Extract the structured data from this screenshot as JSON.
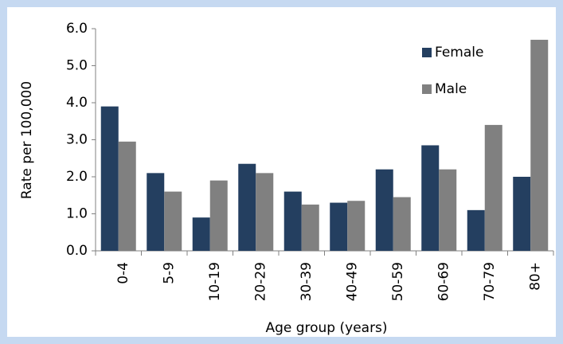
{
  "chart_data": {
    "type": "bar",
    "xlabel": "Age group (years)",
    "ylabel": "Rate per 100,000",
    "categories": [
      "0-4",
      "5-9",
      "10-19",
      "20-29",
      "30-39",
      "40-49",
      "50-59",
      "60-69",
      "70-79",
      "80+"
    ],
    "series": [
      {
        "name": "Female",
        "color": "#243f60",
        "values": [
          3.9,
          2.1,
          0.9,
          2.35,
          1.6,
          1.3,
          2.2,
          2.85,
          1.1,
          2.0
        ]
      },
      {
        "name": "Male",
        "color": "#808080",
        "values": [
          2.95,
          1.6,
          1.9,
          2.1,
          1.25,
          1.35,
          1.45,
          2.2,
          3.4,
          5.7
        ]
      }
    ],
    "ylim": [
      0,
      6
    ],
    "yticks": [
      {
        "value": 0,
        "label": "0.0"
      },
      {
        "value": 1,
        "label": "1.0"
      },
      {
        "value": 2,
        "label": "2.0"
      },
      {
        "value": 3,
        "label": "3.0"
      },
      {
        "value": 4,
        "label": "4.0"
      },
      {
        "value": 5,
        "label": "5.0"
      },
      {
        "value": 6,
        "label": "6.0"
      }
    ],
    "grid": false,
    "legend": "upper right"
  }
}
